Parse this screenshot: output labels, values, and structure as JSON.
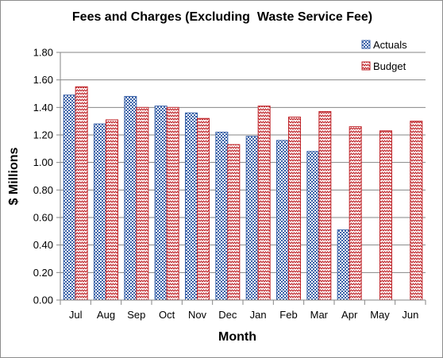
{
  "chart_data": {
    "type": "bar",
    "title": "Fees and Charges (Excluding  Waste Service Fee)",
    "xlabel": "Month",
    "ylabel": "$ Millions",
    "categories": [
      "Jul",
      "Aug",
      "Sep",
      "Oct",
      "Nov",
      "Dec",
      "Jan",
      "Feb",
      "Mar",
      "Apr",
      "May",
      "Jun"
    ],
    "ylim": [
      0,
      1.8
    ],
    "yticks": [
      "0.00",
      "0.20",
      "0.40",
      "0.60",
      "0.80",
      "1.00",
      "1.20",
      "1.40",
      "1.60",
      "1.80"
    ],
    "grid": true,
    "legend_position": "top-right",
    "series": [
      {
        "name": "Actuals",
        "color": "#3a62a8",
        "pattern": "checker",
        "values": [
          1.49,
          1.28,
          1.48,
          1.41,
          1.36,
          1.22,
          1.19,
          1.16,
          1.08,
          0.51,
          null,
          null
        ]
      },
      {
        "name": "Budget",
        "color": "#c0262b",
        "pattern": "zigzag",
        "values": [
          1.55,
          1.31,
          1.4,
          1.4,
          1.32,
          1.13,
          1.41,
          1.33,
          1.37,
          1.26,
          1.23,
          1.3
        ]
      }
    ]
  }
}
